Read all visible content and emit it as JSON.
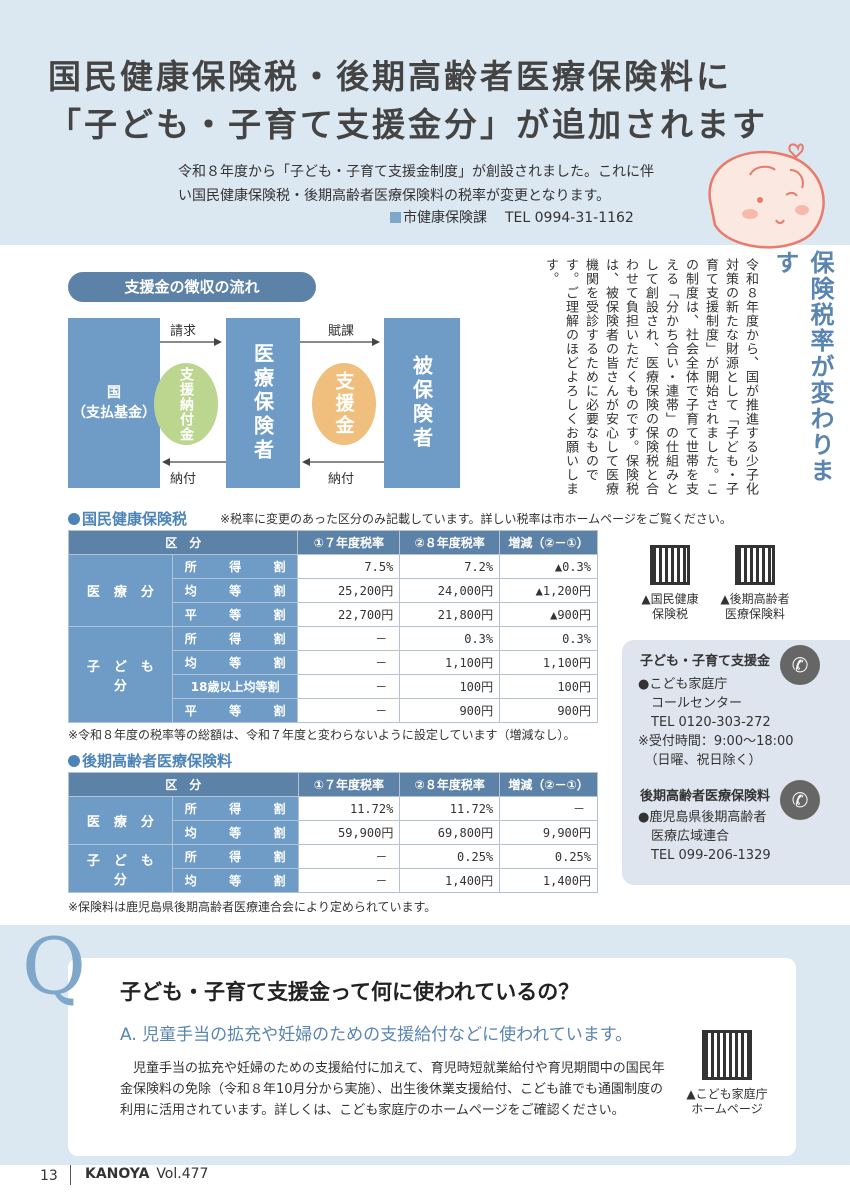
{
  "header": {
    "title_line1": "国民健康保険税・後期高齢者医療保険料に",
    "title_line2": "「子ども・子育て支援金分」が追加されます",
    "intro": "令和８年度から「子ども・子育て支援金制度」が創設されました。これに伴い国民健康保険税・後期高齢者医療保険料の税率が変更となります。",
    "dept": "市健康保険課",
    "tel": "TEL 0994-31-1162"
  },
  "flow": {
    "title": "支援金の徴収の流れ",
    "kuni_1": "国",
    "kuni_2": "（支払基金）",
    "circle1": "支援納付金",
    "insurer": "医療保険者",
    "circle2": "支援金",
    "insured": "被保険者",
    "arrow_seikyu": "請求",
    "arrow_fuka": "賦課",
    "arrow_nofu1": "納付",
    "arrow_nofu2": "納付"
  },
  "article": {
    "title": "保険税率が変わります",
    "body": "令和８年度から、国が推進する少子化対策の新たな財源として「子ども・子育て支援制度」が開始されました。この制度は、社会全体で子育て世帯を支える「分かち合い・連帯」の仕組みとして創設され、医療保険の保険税と合わせて負担いただくものです。保険税は、被保険者の皆さんが安心して医療機関を受診するために必要なものです。ご理解のほどよろしくお願いします。"
  },
  "kokuho": {
    "heading": "国民健康保険税",
    "note": "※税率に変更のあった区分のみ記載しています。詳しい税率は市ホームページをご覧ください。",
    "headers": [
      "区　分",
      "①７年度税率",
      "②８年度税率",
      "増減（②－①）"
    ],
    "groups": [
      {
        "name": "医療分",
        "rows": [
          {
            "label": "所得割",
            "r7": "7.5%",
            "r8": "7.2%",
            "diff": "▲0.3%"
          },
          {
            "label": "均等割",
            "r7": "25,200円",
            "r8": "24,000円",
            "diff": "▲1,200円"
          },
          {
            "label": "平等割",
            "r7": "22,700円",
            "r8": "21,800円",
            "diff": "▲900円"
          }
        ]
      },
      {
        "name": "子ども分",
        "rows": [
          {
            "label": "所得割",
            "r7": "－",
            "r8": "0.3%",
            "diff": "0.3%"
          },
          {
            "label": "均等割",
            "r7": "－",
            "r8": "1,100円",
            "diff": "1,100円"
          },
          {
            "label": "18歳以上均等割",
            "r7": "－",
            "r8": "100円",
            "diff": "100円"
          },
          {
            "label": "平等割",
            "r7": "－",
            "r8": "900円",
            "diff": "900円"
          }
        ]
      }
    ],
    "footnote": "※令和８年度の税率等の総額は、令和７年度と変わらないように設定しています（増減なし）。"
  },
  "koki": {
    "heading": "後期高齢者医療保険料",
    "headers": [
      "区　分",
      "①７年度税率",
      "②８年度税率",
      "増減（②－①）"
    ],
    "groups": [
      {
        "name": "医療分",
        "rows": [
          {
            "label": "所得割",
            "r7": "11.72%",
            "r8": "11.72%",
            "diff": "－"
          },
          {
            "label": "均等割",
            "r7": "59,900円",
            "r8": "69,800円",
            "diff": "9,900円"
          }
        ]
      },
      {
        "name": "子ども分",
        "rows": [
          {
            "label": "所得割",
            "r7": "－",
            "r8": "0.25%",
            "diff": "0.25%"
          },
          {
            "label": "均等割",
            "r7": "－",
            "r8": "1,400円",
            "diff": "1,400円"
          }
        ]
      }
    ],
    "footnote": "※保険料は鹿児島県後期高齢者医療連合会により定められています。"
  },
  "qr": {
    "label1_a": "▲国民健康",
    "label1_b": "保険税",
    "label2_a": "▲後期高齢者",
    "label2_b": "医療保険料",
    "label3_a": "▲こども家庭庁",
    "label3_b": "ホームページ"
  },
  "contact": {
    "c1_title": "子ども・子育て支援金",
    "c1_lines": [
      "●こども家庭庁",
      "　コールセンター",
      "　TEL 0120-303-272",
      "※受付時間：9:00～18:00",
      "　（日曜、祝日除く）"
    ],
    "c2_title": "後期高齢者医療保険料",
    "c2_lines": [
      "●鹿児島県後期高齢者",
      "　医療広域連合",
      "　TEL 099-206-1329"
    ],
    "phone_icon": "phone-icon"
  },
  "qa": {
    "q_letter": "Q",
    "question": "子ども・子育て支援金って何に使われているの？",
    "answer": "A. 児童手当の拡充や妊婦のための支援給付などに使われています。",
    "body": "児童手当の拡充や妊婦のための支援給付に加えて、育児時短就業給付や育児期間中の国民年金保険料の免除（令和８年10月分から実施）、出生後休業支援給付、こども誰でも通園制度の利用に活用されています。詳しくは、こども家庭庁のホームページをご確認ください。"
  },
  "footer": {
    "page": "13",
    "magazine": "KANOYA",
    "volume": "Vol.477"
  },
  "colors": {
    "accent": "#5d82a8",
    "cell": "#6f9cc6",
    "green": "#bcd58f",
    "orange": "#f0bf7d",
    "header_bg": "#dbe7f1"
  }
}
